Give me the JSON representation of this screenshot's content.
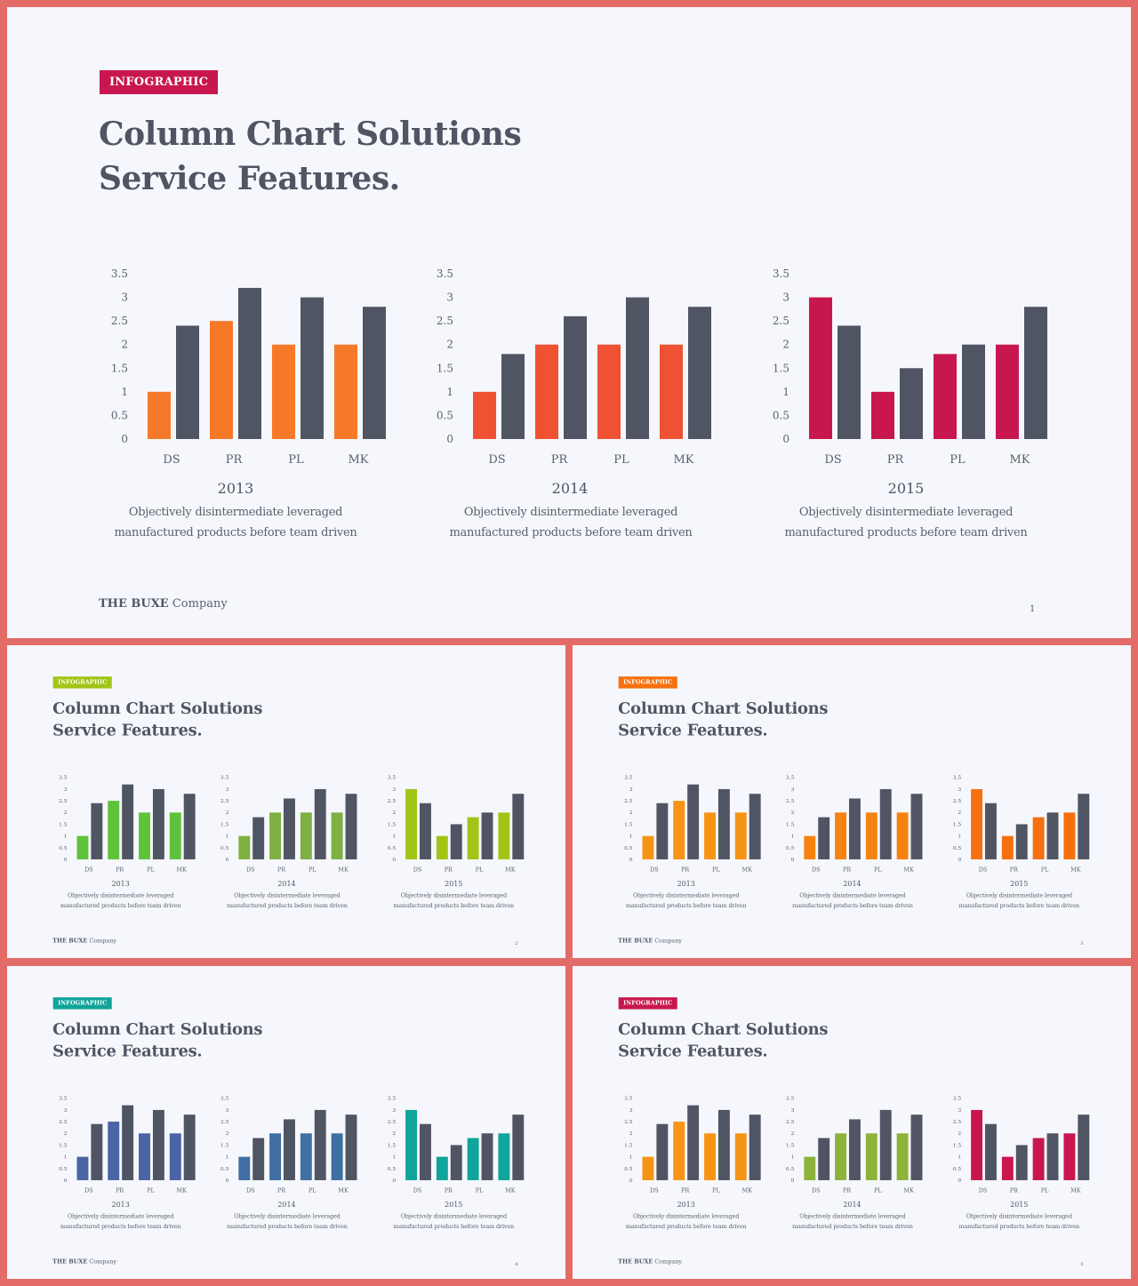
{
  "palette": {
    "dark": "#4f5563"
  },
  "slides": [
    {
      "tag": "INFOGRAPHIC",
      "tag_color": "#c8174e",
      "title_line1": "Column Chart Solutions",
      "title_line2": "Service Features.",
      "company_bold": "THE BUXE",
      "company_rest": " Company",
      "page": "1",
      "colors": [
        "#f6792a",
        "#ef5133",
        "#c8174e"
      ]
    },
    {
      "tag": "INFOGRAPHIC",
      "tag_color": "#a1c517",
      "title_line1": "Column Chart Solutions",
      "title_line2": "Service Features.",
      "company_bold": "THE BUXE",
      "company_rest": " Company",
      "page": "2",
      "colors": [
        "#5ec33a",
        "#7db141",
        "#a1c517"
      ]
    },
    {
      "tag": "INFOGRAPHIC",
      "tag_color": "#f6700f",
      "title_line1": "Column Chart Solutions",
      "title_line2": "Service Features.",
      "company_bold": "THE BUXE",
      "company_rest": " Company",
      "page": "3",
      "colors": [
        "#f69415",
        "#f6820f",
        "#f6700f"
      ]
    },
    {
      "tag": "INFOGRAPHIC",
      "tag_color": "#10a49a",
      "title_line1": "Column Chart Solutions",
      "title_line2": "Service Features.",
      "company_bold": "THE BUXE",
      "company_rest": " Company",
      "page": "4",
      "colors": [
        "#4a64a4",
        "#3f6fa3",
        "#10a49a"
      ]
    },
    {
      "tag": "INFOGRAPHIC",
      "tag_color": "#c8174e",
      "title_line1": "Column Chart Solutions",
      "title_line2": "Service Features.",
      "company_bold": "THE BUXE",
      "company_rest": " Company",
      "page": "5",
      "colors": [
        "#f69415",
        "#8cb33a",
        "#c8174e"
      ]
    }
  ],
  "chart_data": [
    {
      "type": "bar",
      "title": "2013",
      "categories": [
        "DS",
        "PR",
        "PL",
        "MK"
      ],
      "series": [
        {
          "values": [
            1,
            2.5,
            2,
            2
          ]
        },
        {
          "values": [
            2.4,
            3.2,
            3,
            2.8
          ]
        }
      ],
      "ylim": [
        0,
        3.5
      ],
      "yticks": [
        "0",
        "0.5",
        "1",
        "1.5",
        "2",
        "2.5",
        "3",
        "3.5"
      ],
      "description_line1": "Objectively disintermediate leveraged",
      "description_line2": "manufactured products before team driven"
    },
    {
      "type": "bar",
      "title": "2014",
      "categories": [
        "DS",
        "PR",
        "PL",
        "MK"
      ],
      "series": [
        {
          "values": [
            1,
            2,
            2,
            2
          ]
        },
        {
          "values": [
            1.8,
            2.6,
            3,
            2.8
          ]
        }
      ],
      "ylim": [
        0,
        3.5
      ],
      "yticks": [
        "0",
        "0.5",
        "1",
        "1.5",
        "2",
        "2.5",
        "3",
        "3.5"
      ],
      "description_line1": "Objectively disintermediate leveraged",
      "description_line2": "manufactured products before team driven"
    },
    {
      "type": "bar",
      "title": "2015",
      "categories": [
        "DS",
        "PR",
        "PL",
        "MK"
      ],
      "series": [
        {
          "values": [
            3,
            1,
            1.8,
            2
          ]
        },
        {
          "values": [
            2.4,
            1.5,
            2,
            2.8
          ]
        }
      ],
      "ylim": [
        0,
        3.5
      ],
      "yticks": [
        "0",
        "0.5",
        "1",
        "1.5",
        "2",
        "2.5",
        "3",
        "3.5"
      ],
      "description_line1": "Objectively disintermediate leveraged",
      "description_line2": "manufactured products before team driven"
    }
  ]
}
